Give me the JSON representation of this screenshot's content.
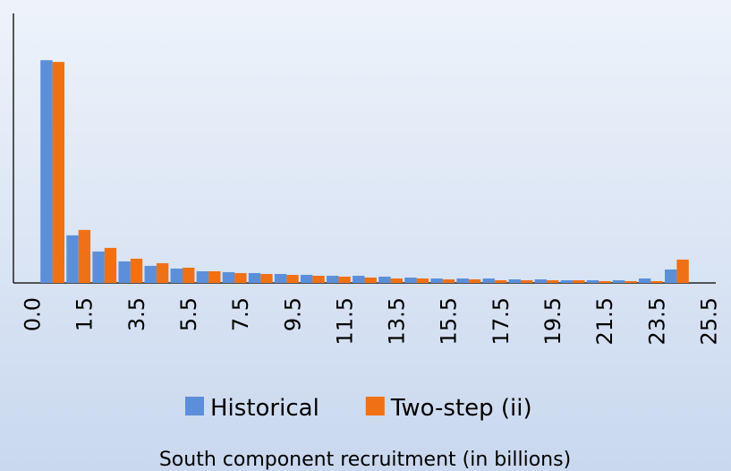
{
  "chart_data": {
    "type": "bar",
    "x_label": "South component recruitment (in billions)",
    "categories": [
      "0.0",
      null,
      "1.5",
      null,
      "3.5",
      null,
      "5.5",
      null,
      "7.5",
      null,
      "9.5",
      null,
      "11.5",
      null,
      "13.5",
      null,
      "15.5",
      null,
      "17.5",
      null,
      "19.5",
      null,
      "21.5",
      null,
      "23.5",
      null,
      "25.5"
    ],
    "series": [
      {
        "name": "Historical",
        "color": "#5b8fd9",
        "values": [
          null,
          248,
          53,
          35,
          24,
          19,
          16,
          13,
          12,
          11,
          10,
          9,
          8,
          8,
          7,
          6,
          5,
          5,
          5,
          4,
          4,
          3,
          3,
          3,
          5,
          15,
          null
        ]
      },
      {
        "name": "Two-step (ii)",
        "color": "#f07014",
        "values": [
          null,
          246,
          59,
          39,
          27,
          22,
          17,
          13,
          11,
          10,
          9,
          8,
          7,
          6,
          5,
          5,
          4,
          4,
          3,
          3,
          3,
          3,
          2,
          2,
          2,
          26,
          null
        ]
      }
    ],
    "ylim": [
      0,
      300
    ],
    "legend": "bottom"
  }
}
